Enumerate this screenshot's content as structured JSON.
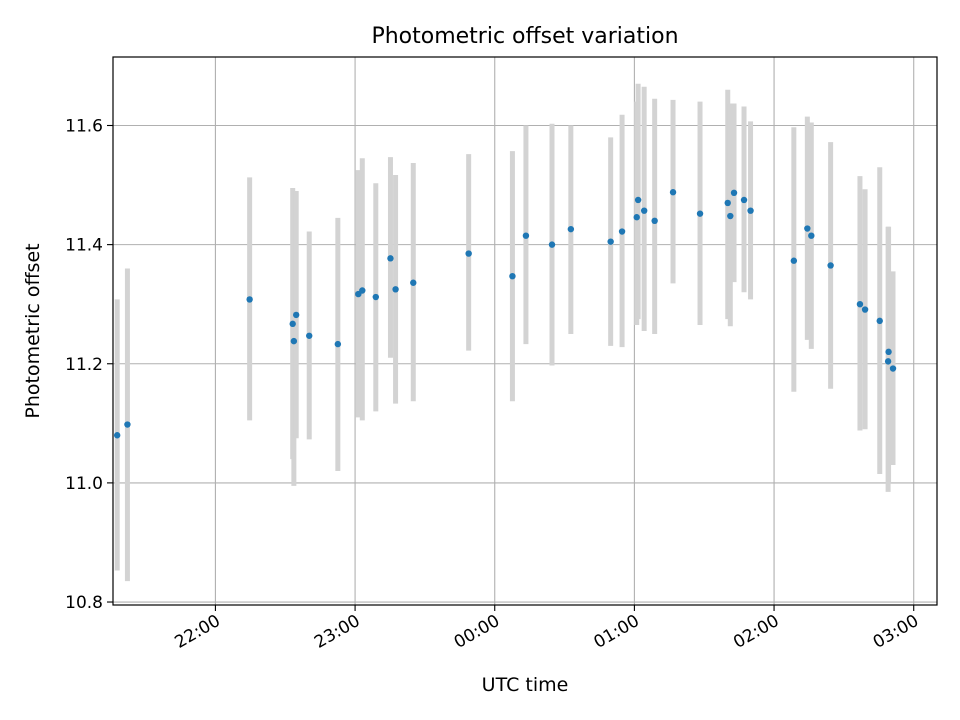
{
  "chart_data": {
    "type": "scatter",
    "title": "Photometric offset variation",
    "xlabel": "UTC time",
    "ylabel": "Photometric offset",
    "x_unit": "minutes",
    "xlim": [
      -164,
      190
    ],
    "ylim": [
      10.795,
      11.715
    ],
    "x_ticks": [
      {
        "value": -120,
        "label": "22:00"
      },
      {
        "value": -60,
        "label": "23:00"
      },
      {
        "value": 0,
        "label": "00:00"
      },
      {
        "value": 60,
        "label": "01:00"
      },
      {
        "value": 120,
        "label": "02:00"
      },
      {
        "value": 180,
        "label": "03:00"
      }
    ],
    "y_ticks": [
      {
        "value": 10.8,
        "label": "10.8"
      },
      {
        "value": 11.0,
        "label": "11.0"
      },
      {
        "value": 11.2,
        "label": "11.2"
      },
      {
        "value": 11.4,
        "label": "11.4"
      },
      {
        "value": 11.6,
        "label": "11.6"
      }
    ],
    "grid": true,
    "point_color": "#1f77b4",
    "errorbar_color": "#d3d3d3",
    "points": [
      {
        "t": -162.2,
        "y": 11.08,
        "lo": 10.853,
        "hi": 11.308
      },
      {
        "t": -157.8,
        "y": 11.098,
        "lo": 10.835,
        "hi": 11.36
      },
      {
        "t": -105.3,
        "y": 11.308,
        "lo": 11.105,
        "hi": 11.513
      },
      {
        "t": -86.8,
        "y": 11.267,
        "lo": 11.04,
        "hi": 11.495
      },
      {
        "t": -86.3,
        "y": 11.238,
        "lo": 10.995,
        "hi": 11.48
      },
      {
        "t": -85.3,
        "y": 11.282,
        "lo": 11.075,
        "hi": 11.49
      },
      {
        "t": -79.7,
        "y": 11.247,
        "lo": 11.073,
        "hi": 11.422
      },
      {
        "t": -67.4,
        "y": 11.233,
        "lo": 11.02,
        "hi": 11.445
      },
      {
        "t": -58.6,
        "y": 11.317,
        "lo": 11.11,
        "hi": 11.525
      },
      {
        "t": -56.9,
        "y": 11.323,
        "lo": 11.105,
        "hi": 11.545
      },
      {
        "t": -51.1,
        "y": 11.312,
        "lo": 11.12,
        "hi": 11.503
      },
      {
        "t": -44.8,
        "y": 11.377,
        "lo": 11.21,
        "hi": 11.547
      },
      {
        "t": -42.6,
        "y": 11.325,
        "lo": 11.133,
        "hi": 11.517
      },
      {
        "t": -35.0,
        "y": 11.336,
        "lo": 11.137,
        "hi": 11.537
      },
      {
        "t": -11.2,
        "y": 11.385,
        "lo": 11.222,
        "hi": 11.552
      },
      {
        "t": 7.6,
        "y": 11.347,
        "lo": 11.137,
        "hi": 11.557
      },
      {
        "t": 13.4,
        "y": 11.415,
        "lo": 11.233,
        "hi": 11.6
      },
      {
        "t": 24.6,
        "y": 11.4,
        "lo": 11.197,
        "hi": 11.603
      },
      {
        "t": 32.7,
        "y": 11.426,
        "lo": 11.25,
        "hi": 11.6
      },
      {
        "t": 49.8,
        "y": 11.405,
        "lo": 11.23,
        "hi": 11.58
      },
      {
        "t": 54.7,
        "y": 11.422,
        "lo": 11.228,
        "hi": 11.618
      },
      {
        "t": 61.0,
        "y": 11.446,
        "lo": 11.265,
        "hi": 11.64
      },
      {
        "t": 61.6,
        "y": 11.475,
        "lo": 11.275,
        "hi": 11.67
      },
      {
        "t": 64.2,
        "y": 11.457,
        "lo": 11.255,
        "hi": 11.665
      },
      {
        "t": 68.7,
        "y": 11.44,
        "lo": 11.25,
        "hi": 11.645
      },
      {
        "t": 76.6,
        "y": 11.488,
        "lo": 11.335,
        "hi": 11.643
      },
      {
        "t": 88.2,
        "y": 11.452,
        "lo": 11.265,
        "hi": 11.64
      },
      {
        "t": 100.1,
        "y": 11.47,
        "lo": 11.275,
        "hi": 11.66
      },
      {
        "t": 101.2,
        "y": 11.448,
        "lo": 11.263,
        "hi": 11.637
      },
      {
        "t": 102.8,
        "y": 11.487,
        "lo": 11.337,
        "hi": 11.637
      },
      {
        "t": 107.1,
        "y": 11.475,
        "lo": 11.32,
        "hi": 11.632
      },
      {
        "t": 109.9,
        "y": 11.457,
        "lo": 11.308,
        "hi": 11.607
      },
      {
        "t": 128.5,
        "y": 11.373,
        "lo": 11.153,
        "hi": 11.597
      },
      {
        "t": 134.3,
        "y": 11.427,
        "lo": 11.24,
        "hi": 11.615
      },
      {
        "t": 136.0,
        "y": 11.415,
        "lo": 11.225,
        "hi": 11.605
      },
      {
        "t": 144.3,
        "y": 11.365,
        "lo": 11.158,
        "hi": 11.572
      },
      {
        "t": 156.9,
        "y": 11.3,
        "lo": 11.088,
        "hi": 11.515
      },
      {
        "t": 159.1,
        "y": 11.291,
        "lo": 11.09,
        "hi": 11.493
      },
      {
        "t": 165.4,
        "y": 11.272,
        "lo": 11.015,
        "hi": 11.53
      },
      {
        "t": 169.0,
        "y": 11.204,
        "lo": 10.985,
        "hi": 11.43
      },
      {
        "t": 169.2,
        "y": 11.22,
        "lo": 11.0,
        "hi": 11.43
      },
      {
        "t": 171.1,
        "y": 11.192,
        "lo": 11.03,
        "hi": 11.355
      }
    ]
  }
}
